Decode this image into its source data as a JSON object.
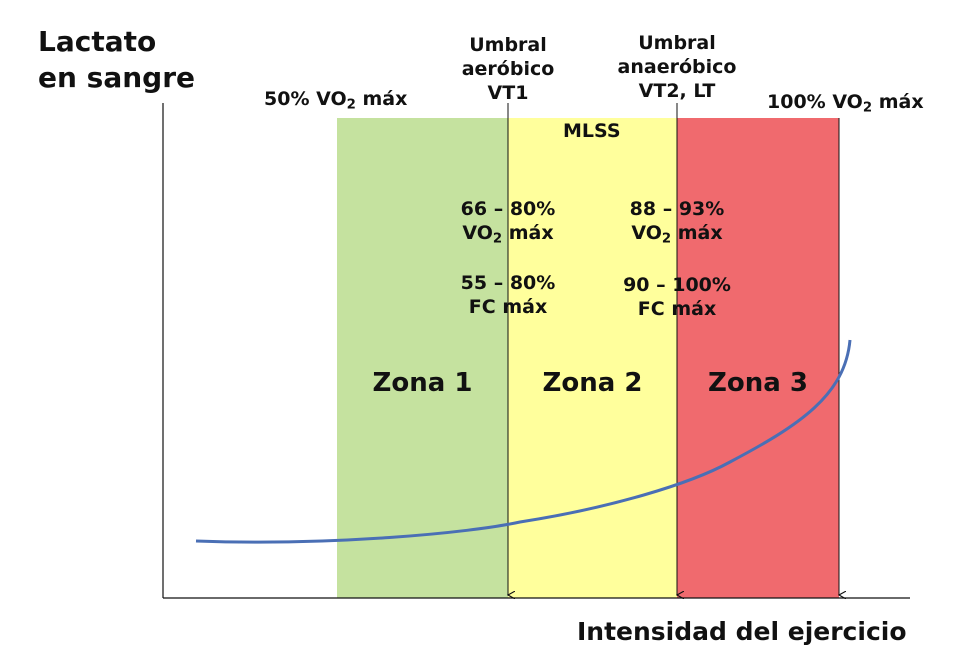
{
  "y_axis_title": [
    "Lactato",
    "en sangre"
  ],
  "x_axis_title": "Intensidad del ejercicio",
  "markers": {
    "vo2_50": {
      "pre": "50% VO",
      "sub": "2",
      "post": " máx"
    },
    "vo2_100": {
      "pre": "100% VO",
      "sub": "2",
      "post": " máx"
    }
  },
  "thresholds": {
    "aerobic": [
      "Umbral",
      "aeróbico",
      "VT1"
    ],
    "anaerobic": [
      "Umbral",
      "anaeróbico",
      "VT2, LT"
    ]
  },
  "mlss": "MLSS",
  "zone2_values": {
    "vo2_range": "66 – 80%",
    "vo2_label": {
      "pre": "VO",
      "sub": "2",
      "post": " máx"
    },
    "fc_range": "55 – 80%",
    "fc_label": "FC máx"
  },
  "zone3_values": {
    "vo2_range": "88 – 93%",
    "vo2_label": {
      "pre": "VO",
      "sub": "2",
      "post": " máx"
    },
    "fc_range": "90 – 100%",
    "fc_label": "FC máx"
  },
  "zones": [
    {
      "label": "Zona 1",
      "color": "#c5e29f"
    },
    {
      "label": "Zona 2",
      "color": "#ffff9c"
    },
    {
      "label": "Zona 3",
      "color": "#f06a6e"
    }
  ],
  "curve_color": "#4a6fb5",
  "axis_color": "#111111"
}
